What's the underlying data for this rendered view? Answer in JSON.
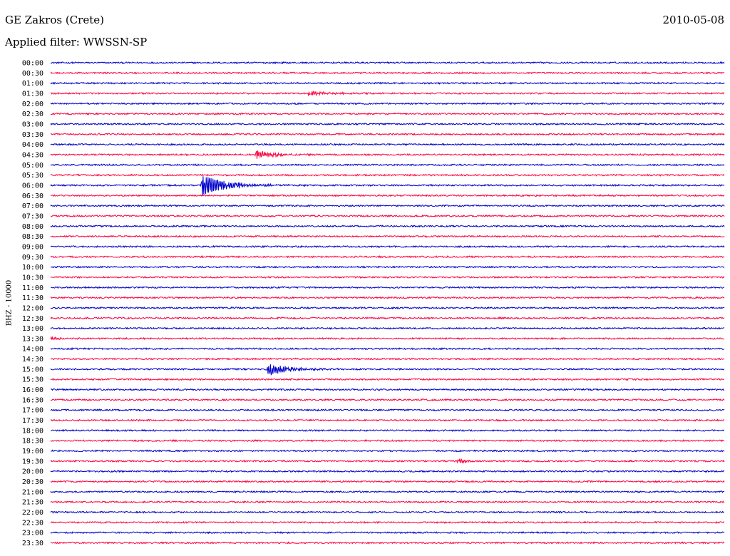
{
  "header": {
    "station": "GE Zakros (Crete)",
    "date": "2010-05-08",
    "filter": "Applied filter: WWSSN-SP"
  },
  "chart_data": {
    "type": "line",
    "title": "GE Zakros (Crete)",
    "subtitle": "Applied filter: WWSSN-SP",
    "ylabel": "BHZ - 10000",
    "xlabel": "",
    "colors": {
      "blue": "#0000cc",
      "red": "#ff0040"
    },
    "rows": [
      {
        "label": "00:00",
        "color": "blue"
      },
      {
        "label": "00:30",
        "color": "red"
      },
      {
        "label": "01:00",
        "color": "blue"
      },
      {
        "label": "01:30",
        "color": "red"
      },
      {
        "label": "02:00",
        "color": "blue"
      },
      {
        "label": "02:30",
        "color": "red"
      },
      {
        "label": "03:00",
        "color": "blue"
      },
      {
        "label": "03:30",
        "color": "red"
      },
      {
        "label": "04:00",
        "color": "blue"
      },
      {
        "label": "04:30",
        "color": "red"
      },
      {
        "label": "05:00",
        "color": "blue"
      },
      {
        "label": "05:30",
        "color": "red"
      },
      {
        "label": "06:00",
        "color": "blue"
      },
      {
        "label": "06:30",
        "color": "red"
      },
      {
        "label": "07:00",
        "color": "blue"
      },
      {
        "label": "07:30",
        "color": "red"
      },
      {
        "label": "08:00",
        "color": "blue"
      },
      {
        "label": "08:30",
        "color": "red"
      },
      {
        "label": "09:00",
        "color": "blue"
      },
      {
        "label": "09:30",
        "color": "red"
      },
      {
        "label": "10:00",
        "color": "blue"
      },
      {
        "label": "10:30",
        "color": "red"
      },
      {
        "label": "11:00",
        "color": "blue"
      },
      {
        "label": "11:30",
        "color": "red"
      },
      {
        "label": "12:00",
        "color": "blue"
      },
      {
        "label": "12:30",
        "color": "red"
      },
      {
        "label": "13:00",
        "color": "blue"
      },
      {
        "label": "13:30",
        "color": "red"
      },
      {
        "label": "14:00",
        "color": "blue"
      },
      {
        "label": "14:30",
        "color": "red"
      },
      {
        "label": "15:00",
        "color": "blue"
      },
      {
        "label": "15:30",
        "color": "red"
      },
      {
        "label": "16:00",
        "color": "blue"
      },
      {
        "label": "16:30",
        "color": "red"
      },
      {
        "label": "17:00",
        "color": "blue"
      },
      {
        "label": "17:30",
        "color": "red"
      },
      {
        "label": "18:00",
        "color": "blue"
      },
      {
        "label": "18:30",
        "color": "red"
      },
      {
        "label": "19:00",
        "color": "blue"
      },
      {
        "label": "19:30",
        "color": "red"
      },
      {
        "label": "20:00",
        "color": "blue"
      },
      {
        "label": "20:30",
        "color": "red"
      },
      {
        "label": "21:00",
        "color": "blue"
      },
      {
        "label": "21:30",
        "color": "red"
      },
      {
        "label": "22:00",
        "color": "blue"
      },
      {
        "label": "22:30",
        "color": "red"
      },
      {
        "label": "23:00",
        "color": "blue"
      },
      {
        "label": "23:30",
        "color": "red"
      }
    ],
    "events": [
      {
        "row": "01:30",
        "minute": 11.4,
        "amplitude": 0.9,
        "duration_min": 1.8
      },
      {
        "row": "04:30",
        "minute": 9.1,
        "amplitude": 1.6,
        "duration_min": 2.0
      },
      {
        "row": "06:00",
        "minute": 6.7,
        "amplitude": 3.6,
        "duration_min": 2.5
      },
      {
        "row": "13:30",
        "minute": 0.0,
        "amplitude": 0.8,
        "duration_min": 0.6
      },
      {
        "row": "15:00",
        "minute": 9.6,
        "amplitude": 2.6,
        "duration_min": 1.8
      },
      {
        "row": "19:30",
        "minute": 18.1,
        "amplitude": 1.2,
        "duration_min": 0.8
      }
    ],
    "minutes_per_row": 30,
    "noise_amplitude": 0.25,
    "grid": false
  }
}
